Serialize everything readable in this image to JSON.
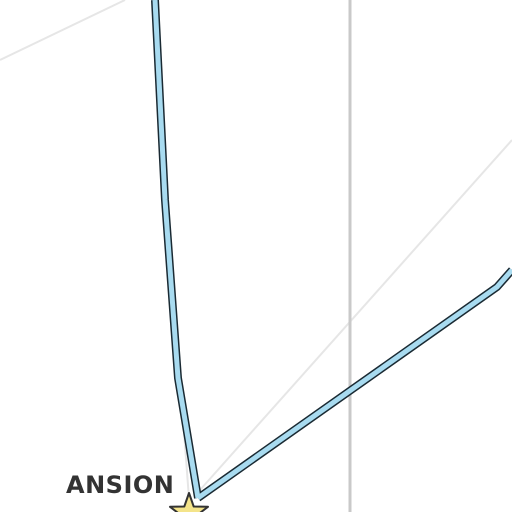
{
  "map": {
    "background_color": "#ffffff",
    "colors": {
      "minor_road": "#e6e6e6",
      "boundary": "#c9c9c9",
      "route_fill": "#a8dbf0",
      "route_casing": "#1a2a33",
      "marker_fill": "#f4e48a",
      "marker_stroke": "#333333",
      "label": "#333333"
    },
    "place_label": "ANSION",
    "marker_icon": "star-marker-icon"
  }
}
